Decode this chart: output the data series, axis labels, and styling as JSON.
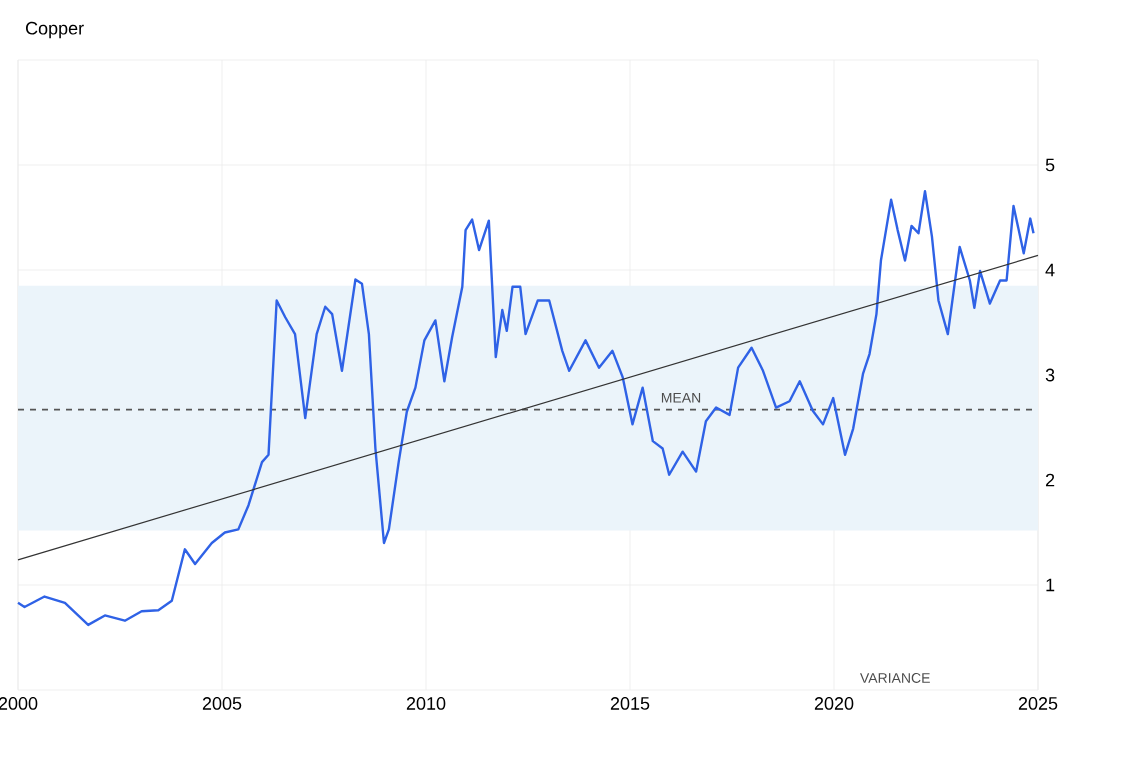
{
  "chart_data": {
    "type": "line",
    "title": "Copper",
    "xlim": [
      2000,
      2025
    ],
    "xticks": [
      2000,
      2005,
      2010,
      2015,
      2020,
      2025
    ],
    "ylim": [
      0,
      6
    ],
    "yticks": [
      1,
      2,
      3,
      4,
      5
    ],
    "grid": true,
    "marker": "none",
    "line_style": "solid",
    "series": [
      {
        "color": "#2f62e6",
        "x": [
          2000.0,
          2000.16,
          2000.65,
          2001.15,
          2001.72,
          2002.13,
          2002.62,
          2003.03,
          2003.44,
          2003.77,
          2004.09,
          2004.34,
          2004.75,
          2005.07,
          2005.4,
          2005.65,
          2005.98,
          2006.14,
          2006.34,
          2006.55,
          2006.79,
          2007.04,
          2007.32,
          2007.53,
          2007.7,
          2007.94,
          2008.27,
          2008.43,
          2008.6,
          2008.76,
          2008.97,
          2009.09,
          2009.33,
          2009.53,
          2009.74,
          2009.96,
          2010.23,
          2010.45,
          2010.64,
          2010.89,
          2010.97,
          2011.13,
          2011.3,
          2011.54,
          2011.71,
          2011.87,
          2011.98,
          2012.12,
          2012.31,
          2012.44,
          2012.74,
          2013.02,
          2013.34,
          2013.51,
          2013.91,
          2014.24,
          2014.57,
          2014.82,
          2015.06,
          2015.31,
          2015.56,
          2015.8,
          2015.96,
          2016.29,
          2016.62,
          2016.86,
          2017.11,
          2017.44,
          2017.65,
          2017.98,
          2018.26,
          2018.58,
          2018.91,
          2019.16,
          2019.48,
          2019.73,
          2019.98,
          2020.27,
          2020.47,
          2020.71,
          2020.87,
          2021.04,
          2021.15,
          2021.4,
          2021.56,
          2021.74,
          2021.9,
          2022.07,
          2022.23,
          2022.4,
          2022.56,
          2022.79,
          2023.08,
          2023.33,
          2023.44,
          2023.58,
          2023.82,
          2024.07,
          2024.23,
          2024.4,
          2024.65,
          2024.81,
          2024.89
        ],
        "values": [
          0.83,
          0.79,
          0.89,
          0.83,
          0.62,
          0.71,
          0.66,
          0.75,
          0.76,
          0.85,
          1.34,
          1.2,
          1.4,
          1.5,
          1.53,
          1.76,
          2.17,
          2.24,
          3.71,
          3.55,
          3.39,
          2.59,
          3.39,
          3.65,
          3.58,
          3.04,
          3.91,
          3.87,
          3.39,
          2.3,
          1.4,
          1.53,
          2.17,
          2.65,
          2.88,
          3.33,
          3.52,
          2.94,
          3.36,
          3.84,
          4.38,
          4.48,
          4.19,
          4.47,
          3.17,
          3.62,
          3.42,
          3.84,
          3.84,
          3.39,
          3.71,
          3.71,
          3.23,
          3.04,
          3.33,
          3.07,
          3.23,
          2.98,
          2.53,
          2.88,
          2.37,
          2.3,
          2.05,
          2.27,
          2.08,
          2.56,
          2.69,
          2.62,
          3.07,
          3.26,
          3.04,
          2.69,
          2.75,
          2.94,
          2.66,
          2.53,
          2.78,
          2.24,
          2.49,
          3.01,
          3.2,
          3.58,
          4.09,
          4.67,
          4.38,
          4.09,
          4.42,
          4.35,
          4.75,
          4.32,
          3.71,
          3.39,
          4.22,
          3.9,
          3.64,
          3.99,
          3.68,
          3.9,
          3.9,
          4.61,
          4.16,
          4.49,
          4.35
        ]
      },
      {
        "type": "line",
        "color": "#333333",
        "x": [
          2000,
          2025
        ],
        "values": [
          1.24,
          4.14
        ]
      }
    ],
    "ref_lines": [
      {
        "axis": "y",
        "value": 2.67,
        "label": "MEAN",
        "color": "#555555",
        "line_style": "dashed"
      }
    ],
    "bands": [
      {
        "axis": "y",
        "from": 1.52,
        "to": 3.85,
        "color": "#ebf4fa"
      }
    ],
    "annotations": [
      "VARIANCE"
    ]
  }
}
